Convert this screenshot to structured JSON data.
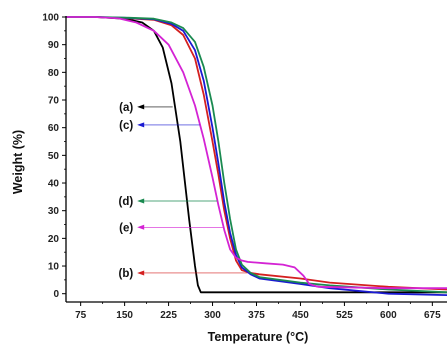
{
  "chart_data": {
    "type": "line",
    "xlabel": "Temperature",
    "xlabel_unit": "(°C)",
    "ylabel": "Weight (%)",
    "xlim": [
      50,
      700
    ],
    "ylim": [
      -3,
      100
    ],
    "x_ticks": [
      75,
      150,
      225,
      300,
      375,
      450,
      525,
      600,
      675
    ],
    "y_ticks": [
      0,
      10,
      20,
      30,
      40,
      50,
      60,
      70,
      80,
      90,
      100
    ],
    "colors": {
      "a": "#000000",
      "b": "#d42020",
      "c": "#1a1ad2",
      "d": "#1a8a50",
      "e": "#d423d4"
    },
    "series": [
      {
        "key": "a",
        "x": [
          50,
          100,
          150,
          180,
          200,
          215,
          230,
          245,
          260,
          270,
          275,
          280,
          320,
          400,
          500,
          600,
          700
        ],
        "y": [
          100,
          100,
          99.4,
          98,
          95,
          89,
          76,
          55,
          27,
          10,
          3,
          0.5,
          0.5,
          0.5,
          0.5,
          0.5,
          0.5
        ]
      },
      {
        "key": "b",
        "x": [
          50,
          100,
          150,
          200,
          230,
          250,
          270,
          285,
          300,
          310,
          320,
          330,
          340,
          350,
          365,
          380,
          450,
          500,
          600,
          700
        ],
        "y": [
          100,
          100,
          99.6,
          99,
          97,
          93.5,
          85,
          72,
          55,
          43,
          30,
          20,
          12,
          8.5,
          7.5,
          7,
          5.5,
          4,
          2.5,
          1.5
        ]
      },
      {
        "key": "c",
        "x": [
          50,
          100,
          150,
          200,
          230,
          250,
          270,
          285,
          300,
          310,
          320,
          330,
          340,
          350,
          365,
          380,
          450,
          500,
          600,
          700
        ],
        "y": [
          100,
          100,
          99.7,
          99.2,
          97.5,
          95,
          88,
          77,
          60,
          47,
          33,
          22,
          14,
          9.5,
          7,
          5.5,
          3.5,
          2,
          0,
          -0.5
        ]
      },
      {
        "key": "d",
        "x": [
          50,
          100,
          150,
          200,
          230,
          250,
          270,
          285,
          300,
          310,
          320,
          330,
          340,
          350,
          365,
          380,
          450,
          500,
          600,
          700
        ],
        "y": [
          100,
          100,
          99.8,
          99.4,
          98,
          96,
          91,
          82,
          68,
          55,
          40,
          27,
          16,
          10.5,
          7.5,
          6,
          4,
          3,
          1.5,
          0.5
        ]
      },
      {
        "key": "e",
        "x": [
          50,
          100,
          140,
          170,
          200,
          225,
          250,
          270,
          285,
          300,
          310,
          320,
          330,
          340,
          350,
          360,
          390,
          420,
          440,
          455,
          465,
          480,
          600,
          700
        ],
        "y": [
          100,
          100,
          99.5,
          98,
          95,
          90,
          80,
          68,
          56,
          42,
          32,
          23,
          16,
          13,
          12,
          11.5,
          11,
          10.5,
          9.5,
          6.5,
          3.5,
          2.5,
          2,
          2
        ]
      }
    ],
    "annotations": [
      {
        "label": "(a)",
        "series": "a",
        "arrow_y": 67.5,
        "arrow_to_x": 52,
        "arrow_from_x": 232
      },
      {
        "label": "(c)",
        "series": "c",
        "arrow_y": 61,
        "arrow_to_x": 52,
        "arrow_from_x": 278
      },
      {
        "label": "(d)",
        "series": "d",
        "arrow_y": 33.5,
        "arrow_to_x": 52,
        "arrow_from_x": 308
      },
      {
        "label": "(e)",
        "series": "e",
        "arrow_y": 24,
        "arrow_to_x": 52,
        "arrow_from_x": 320
      },
      {
        "label": "(b)",
        "series": "b",
        "arrow_y": 7.5,
        "arrow_to_x": 52,
        "arrow_from_x": 360
      }
    ]
  }
}
